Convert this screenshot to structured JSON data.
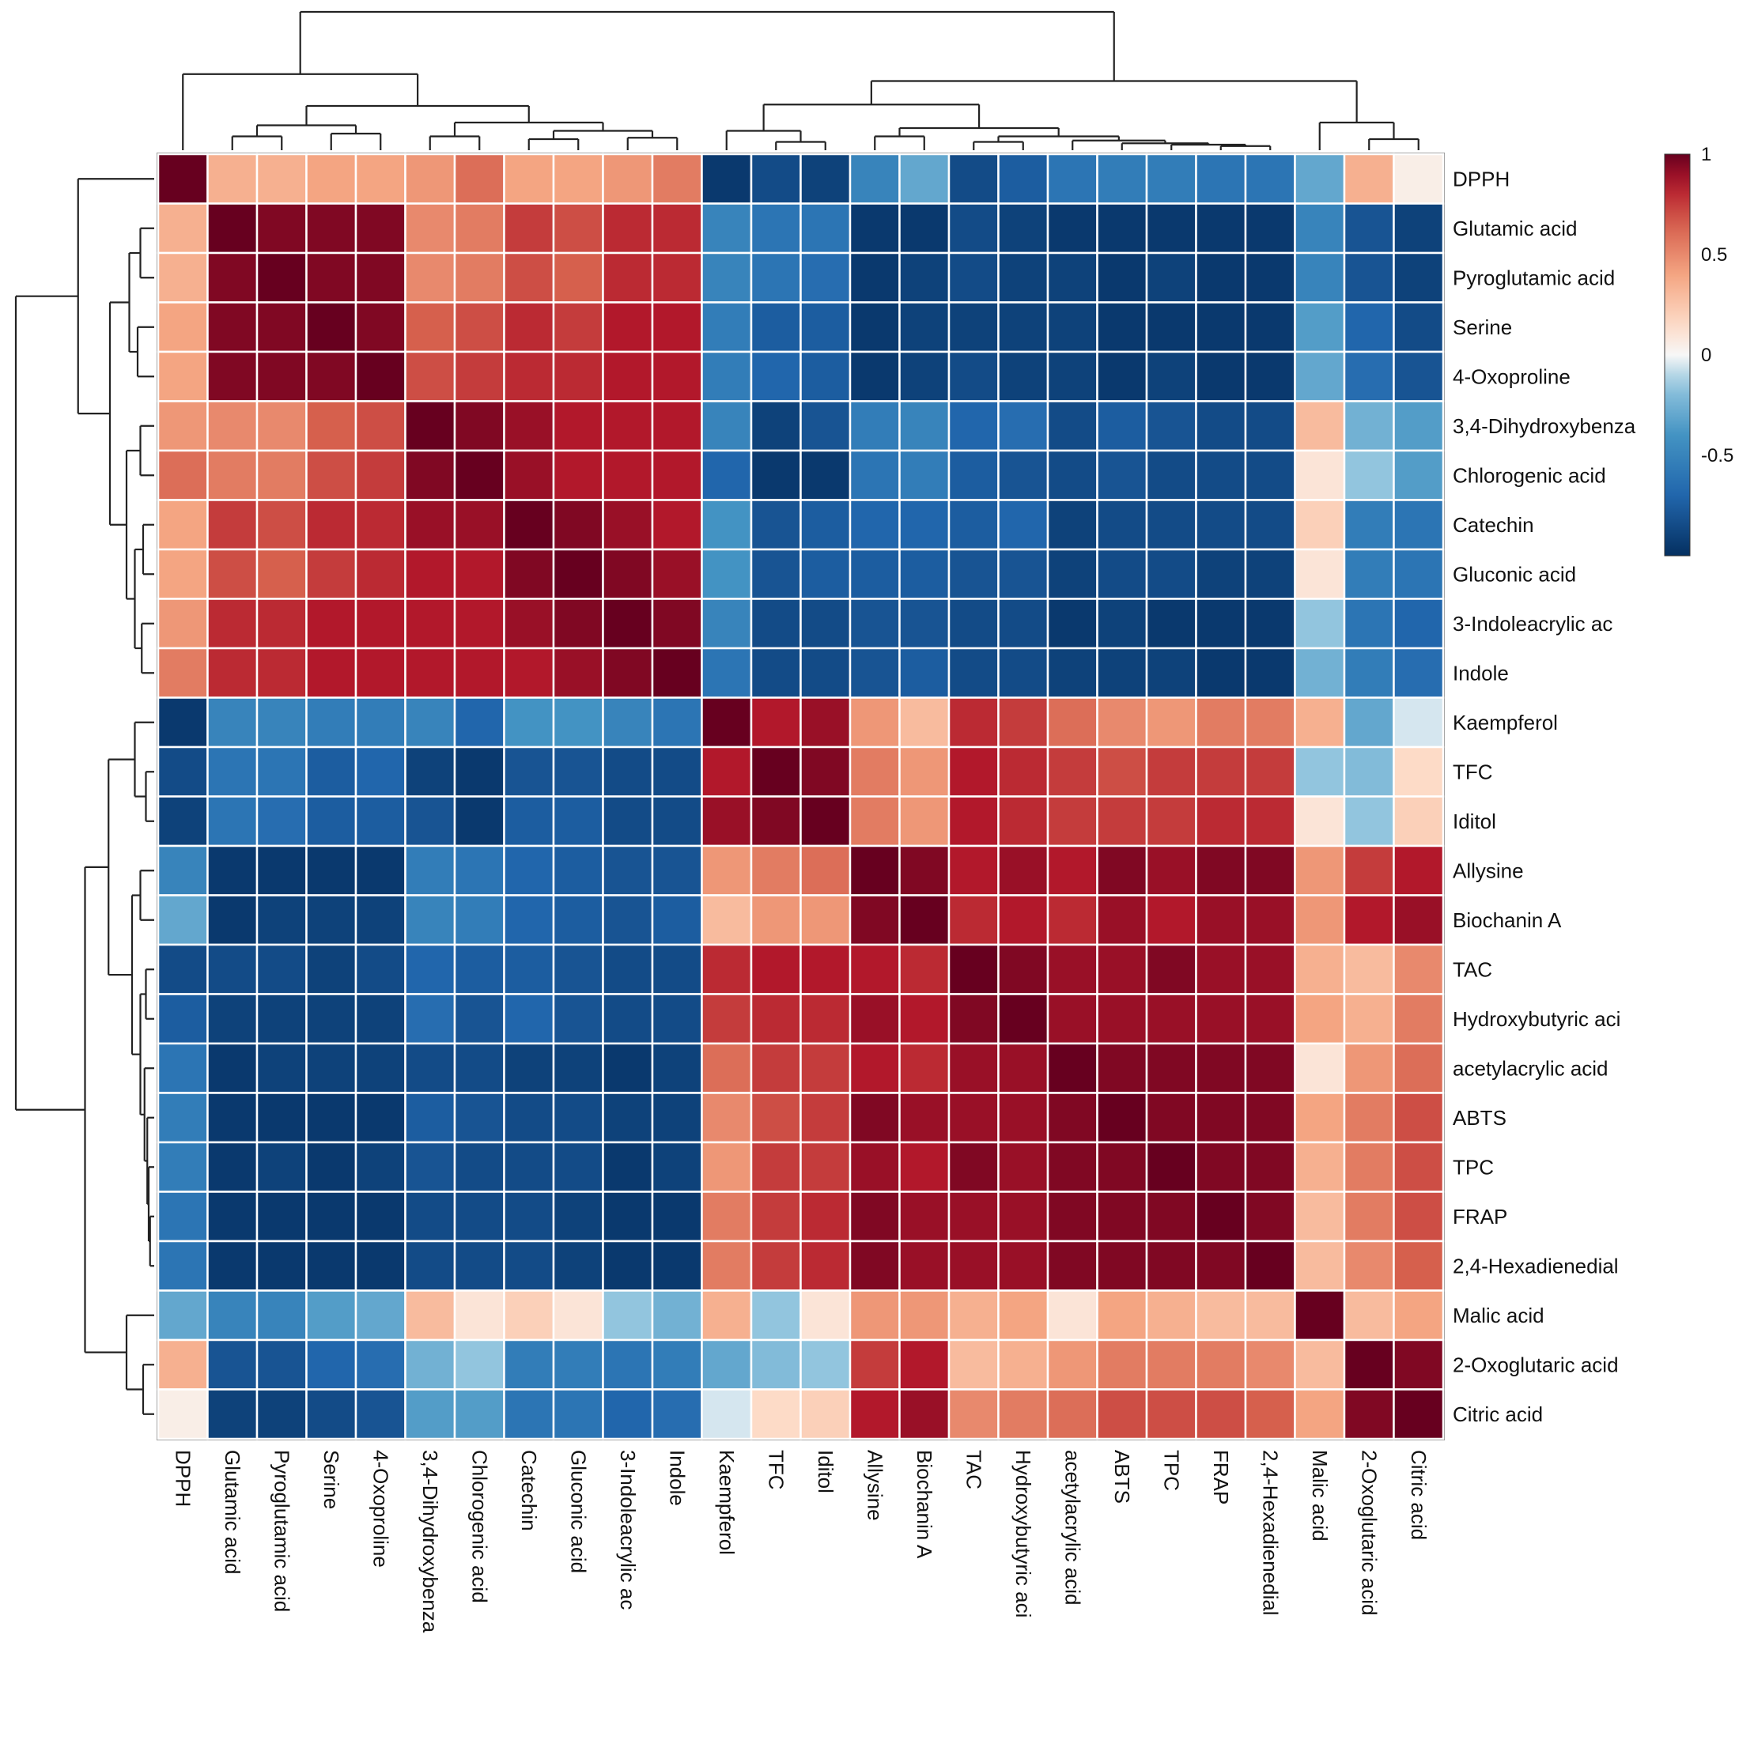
{
  "chart_data": {
    "type": "heatmap",
    "title": "",
    "labels": [
      "DPPH",
      "Glutamic acid",
      "Pyroglutamic acid",
      "Serine",
      "4-Oxoproline",
      "3,4-Dihydroxybenza",
      "Chlorogenic acid",
      "Catechin",
      "Gluconic acid",
      "3-Indoleacrylic ac",
      "Indole",
      "Kaempferol",
      "TFC",
      "Iditol",
      "Allysine",
      "Biochanin A",
      "TAC",
      "Hydroxybutyric aci",
      "acetylacrylic acid",
      "ABTS",
      "TPC",
      "FRAP",
      "2,4-Hexadienedial",
      "Malic acid",
      "2-Oxoglutaric acid",
      "Citric acid"
    ],
    "values": [
      [
        1,
        0.35,
        0.35,
        0.4,
        0.4,
        0.45,
        0.6,
        0.4,
        0.4,
        0.45,
        0.55,
        -0.95,
        -0.85,
        -0.9,
        -0.5,
        -0.3,
        -0.85,
        -0.75,
        -0.6,
        -0.55,
        -0.55,
        -0.6,
        -0.6,
        -0.3,
        0.35,
        0.05
      ],
      [
        0.35,
        1,
        0.95,
        0.95,
        0.95,
        0.5,
        0.55,
        0.75,
        0.7,
        0.8,
        0.8,
        -0.5,
        -0.6,
        -0.6,
        -0.95,
        -0.95,
        -0.85,
        -0.9,
        -0.95,
        -0.95,
        -0.95,
        -0.95,
        -0.95,
        -0.5,
        -0.8,
        -0.9
      ],
      [
        0.35,
        0.95,
        1,
        0.95,
        0.95,
        0.5,
        0.55,
        0.7,
        0.65,
        0.8,
        0.8,
        -0.5,
        -0.6,
        -0.65,
        -0.95,
        -0.9,
        -0.85,
        -0.9,
        -0.9,
        -0.95,
        -0.9,
        -0.95,
        -0.95,
        -0.5,
        -0.8,
        -0.9
      ],
      [
        0.4,
        0.95,
        0.95,
        1,
        0.95,
        0.65,
        0.7,
        0.8,
        0.75,
        0.85,
        0.85,
        -0.55,
        -0.75,
        -0.75,
        -0.95,
        -0.9,
        -0.9,
        -0.9,
        -0.9,
        -0.95,
        -0.95,
        -0.95,
        -0.95,
        -0.35,
        -0.7,
        -0.85
      ],
      [
        0.4,
        0.95,
        0.95,
        0.95,
        1,
        0.7,
        0.75,
        0.8,
        0.8,
        0.85,
        0.85,
        -0.55,
        -0.7,
        -0.75,
        -0.95,
        -0.9,
        -0.85,
        -0.9,
        -0.9,
        -0.95,
        -0.9,
        -0.95,
        -0.95,
        -0.3,
        -0.65,
        -0.8
      ],
      [
        0.45,
        0.5,
        0.5,
        0.65,
        0.7,
        1,
        0.95,
        0.9,
        0.85,
        0.85,
        0.85,
        -0.5,
        -0.9,
        -0.8,
        -0.55,
        -0.5,
        -0.7,
        -0.65,
        -0.85,
        -0.75,
        -0.8,
        -0.85,
        -0.85,
        0.3,
        -0.25,
        -0.35
      ],
      [
        0.6,
        0.55,
        0.55,
        0.7,
        0.75,
        0.95,
        1,
        0.9,
        0.85,
        0.85,
        0.85,
        -0.7,
        -0.95,
        -0.95,
        -0.6,
        -0.55,
        -0.75,
        -0.8,
        -0.85,
        -0.8,
        -0.85,
        -0.85,
        -0.85,
        0.1,
        -0.15,
        -0.35
      ],
      [
        0.4,
        0.75,
        0.7,
        0.8,
        0.8,
        0.9,
        0.9,
        1,
        0.95,
        0.9,
        0.85,
        -0.4,
        -0.8,
        -0.75,
        -0.7,
        -0.7,
        -0.75,
        -0.7,
        -0.9,
        -0.85,
        -0.85,
        -0.85,
        -0.85,
        0.2,
        -0.55,
        -0.6
      ],
      [
        0.4,
        0.7,
        0.65,
        0.75,
        0.8,
        0.85,
        0.85,
        0.95,
        1,
        0.95,
        0.9,
        -0.4,
        -0.8,
        -0.75,
        -0.75,
        -0.75,
        -0.8,
        -0.8,
        -0.9,
        -0.85,
        -0.85,
        -0.9,
        -0.9,
        0.1,
        -0.55,
        -0.6
      ],
      [
        0.45,
        0.8,
        0.8,
        0.85,
        0.85,
        0.85,
        0.85,
        0.9,
        0.95,
        1,
        0.95,
        -0.5,
        -0.85,
        -0.85,
        -0.8,
        -0.8,
        -0.85,
        -0.85,
        -0.95,
        -0.9,
        -0.95,
        -0.95,
        -0.95,
        -0.15,
        -0.6,
        -0.7
      ],
      [
        0.55,
        0.8,
        0.8,
        0.85,
        0.85,
        0.85,
        0.85,
        0.85,
        0.9,
        0.95,
        1,
        -0.6,
        -0.85,
        -0.85,
        -0.8,
        -0.75,
        -0.85,
        -0.85,
        -0.9,
        -0.9,
        -0.9,
        -0.95,
        -0.95,
        -0.25,
        -0.55,
        -0.65
      ],
      [
        -0.95,
        -0.5,
        -0.5,
        -0.55,
        -0.55,
        -0.5,
        -0.7,
        -0.4,
        -0.4,
        -0.5,
        -0.6,
        1,
        0.85,
        0.9,
        0.45,
        0.3,
        0.8,
        0.75,
        0.6,
        0.5,
        0.45,
        0.55,
        0.55,
        0.35,
        -0.3,
        -0.05
      ],
      [
        -0.85,
        -0.6,
        -0.6,
        -0.75,
        -0.7,
        -0.9,
        -0.95,
        -0.8,
        -0.8,
        -0.85,
        -0.85,
        0.85,
        1,
        0.95,
        0.55,
        0.45,
        0.85,
        0.8,
        0.75,
        0.7,
        0.75,
        0.75,
        0.75,
        -0.15,
        -0.2,
        0.15
      ],
      [
        -0.9,
        -0.6,
        -0.65,
        -0.75,
        -0.75,
        -0.8,
        -0.95,
        -0.75,
        -0.75,
        -0.85,
        -0.85,
        0.9,
        0.95,
        1,
        0.55,
        0.45,
        0.85,
        0.8,
        0.75,
        0.75,
        0.75,
        0.8,
        0.8,
        0.1,
        -0.15,
        0.2
      ],
      [
        -0.5,
        -0.95,
        -0.95,
        -0.95,
        -0.95,
        -0.55,
        -0.6,
        -0.7,
        -0.75,
        -0.8,
        -0.8,
        0.45,
        0.55,
        0.6,
        1,
        0.95,
        0.85,
        0.9,
        0.85,
        0.95,
        0.9,
        0.95,
        0.95,
        0.45,
        0.75,
        0.85
      ],
      [
        -0.3,
        -0.95,
        -0.9,
        -0.9,
        -0.9,
        -0.5,
        -0.55,
        -0.7,
        -0.75,
        -0.8,
        -0.75,
        0.3,
        0.45,
        0.45,
        0.95,
        1,
        0.8,
        0.85,
        0.8,
        0.9,
        0.85,
        0.9,
        0.9,
        0.45,
        0.85,
        0.9
      ],
      [
        -0.85,
        -0.85,
        -0.85,
        -0.9,
        -0.85,
        -0.7,
        -0.75,
        -0.75,
        -0.8,
        -0.85,
        -0.85,
        0.8,
        0.85,
        0.85,
        0.85,
        0.8,
        1,
        0.95,
        0.9,
        0.9,
        0.95,
        0.9,
        0.9,
        0.35,
        0.3,
        0.5
      ],
      [
        -0.75,
        -0.9,
        -0.9,
        -0.9,
        -0.9,
        -0.65,
        -0.8,
        -0.7,
        -0.8,
        -0.85,
        -0.85,
        0.75,
        0.8,
        0.8,
        0.9,
        0.85,
        0.95,
        1,
        0.9,
        0.9,
        0.9,
        0.9,
        0.9,
        0.4,
        0.35,
        0.55
      ],
      [
        -0.6,
        -0.95,
        -0.9,
        -0.9,
        -0.9,
        -0.85,
        -0.85,
        -0.9,
        -0.9,
        -0.95,
        -0.9,
        0.6,
        0.75,
        0.75,
        0.85,
        0.8,
        0.9,
        0.9,
        1,
        0.95,
        0.95,
        0.95,
        0.95,
        0.1,
        0.45,
        0.6
      ],
      [
        -0.55,
        -0.95,
        -0.95,
        -0.95,
        -0.95,
        -0.75,
        -0.8,
        -0.85,
        -0.85,
        -0.9,
        -0.9,
        0.5,
        0.7,
        0.75,
        0.95,
        0.9,
        0.9,
        0.9,
        0.95,
        1,
        0.95,
        0.95,
        0.95,
        0.4,
        0.55,
        0.7
      ],
      [
        -0.55,
        -0.95,
        -0.9,
        -0.95,
        -0.9,
        -0.8,
        -0.85,
        -0.85,
        -0.85,
        -0.95,
        -0.9,
        0.45,
        0.75,
        0.75,
        0.9,
        0.85,
        0.95,
        0.9,
        0.95,
        0.95,
        1,
        0.95,
        0.95,
        0.35,
        0.55,
        0.7
      ],
      [
        -0.6,
        -0.95,
        -0.95,
        -0.95,
        -0.95,
        -0.85,
        -0.85,
        -0.85,
        -0.9,
        -0.95,
        -0.95,
        0.55,
        0.75,
        0.8,
        0.95,
        0.9,
        0.9,
        0.9,
        0.95,
        0.95,
        0.95,
        1,
        0.95,
        0.3,
        0.55,
        0.7
      ],
      [
        -0.6,
        -0.95,
        -0.95,
        -0.95,
        -0.95,
        -0.85,
        -0.85,
        -0.85,
        -0.9,
        -0.95,
        -0.95,
        0.55,
        0.75,
        0.8,
        0.95,
        0.9,
        0.9,
        0.9,
        0.95,
        0.95,
        0.95,
        0.95,
        1,
        0.3,
        0.5,
        0.65
      ],
      [
        -0.3,
        -0.5,
        -0.5,
        -0.35,
        -0.3,
        0.3,
        0.1,
        0.2,
        0.1,
        -0.15,
        -0.25,
        0.35,
        -0.15,
        0.1,
        0.45,
        0.45,
        0.35,
        0.4,
        0.1,
        0.4,
        0.35,
        0.3,
        0.3,
        1,
        0.3,
        0.4
      ],
      [
        0.35,
        -0.8,
        -0.8,
        -0.7,
        -0.65,
        -0.25,
        -0.15,
        -0.55,
        -0.55,
        -0.6,
        -0.55,
        -0.3,
        -0.2,
        -0.15,
        0.75,
        0.85,
        0.3,
        0.35,
        0.45,
        0.55,
        0.55,
        0.55,
        0.5,
        0.3,
        1,
        0.95
      ],
      [
        0.05,
        -0.9,
        -0.9,
        -0.85,
        -0.8,
        -0.35,
        -0.35,
        -0.6,
        -0.6,
        -0.7,
        -0.65,
        -0.05,
        0.15,
        0.2,
        0.85,
        0.9,
        0.5,
        0.55,
        0.6,
        0.7,
        0.7,
        0.7,
        0.65,
        0.4,
        0.95,
        1
      ]
    ],
    "dendrogram": {
      "h": 1,
      "c": [
        {
          "h": 0.55,
          "c": [
            0,
            {
              "h": 0.32,
              "c": [
                {
                  "h": 0.18,
                  "c": [
                    {
                      "h": 0.1,
                      "c": [
                        1,
                        2
                      ]
                    },
                    {
                      "h": 0.12,
                      "c": [
                        3,
                        4
                      ]
                    }
                  ]
                },
                {
                  "h": 0.2,
                  "c": [
                    {
                      "h": 0.1,
                      "c": [
                        5,
                        6
                      ]
                    },
                    {
                      "h": 0.14,
                      "c": [
                        {
                          "h": 0.08,
                          "c": [
                            7,
                            8
                          ]
                        },
                        {
                          "h": 0.09,
                          "c": [
                            9,
                            10
                          ]
                        }
                      ]
                    }
                  ]
                }
              ]
            }
          ]
        },
        {
          "h": 0.5,
          "c": [
            {
              "h": 0.33,
              "c": [
                {
                  "h": 0.14,
                  "c": [
                    11,
                    {
                      "h": 0.06,
                      "c": [
                        12,
                        13
                      ]
                    }
                  ]
                },
                {
                  "h": 0.16,
                  "c": [
                    {
                      "h": 0.1,
                      "c": [
                        14,
                        15
                      ]
                    },
                    {
                      "h": 0.1,
                      "c": [
                        {
                          "h": 0.06,
                          "c": [
                            16,
                            17
                          ]
                        },
                        {
                          "h": 0.07,
                          "c": [
                            18,
                            {
                              "h": 0.05,
                              "c": [
                                19,
                                {
                                  "h": 0.04,
                                  "c": [
                                    20,
                                    {
                                      "h": 0.03,
                                      "c": [
                                        21,
                                        22
                                      ]
                                    }
                                  ]
                                }
                              ]
                            }
                          ]
                        }
                      ]
                    }
                  ]
                }
              ]
            },
            {
              "h": 0.2,
              "c": [
                23,
                {
                  "h": 0.08,
                  "c": [
                    24,
                    25
                  ]
                }
              ]
            }
          ]
        }
      ]
    },
    "colorbar": {
      "min": -1,
      "max": 1,
      "ticks": [
        {
          "v": 1,
          "label": "1"
        },
        {
          "v": 0.5,
          "label": "0.5"
        },
        {
          "v": 0,
          "label": "0"
        },
        {
          "v": -0.5,
          "label": "-0.5"
        }
      ]
    },
    "colors": {
      "neg": "#053061",
      "mid": "#f7f7f7",
      "pos": "#67001f"
    }
  }
}
